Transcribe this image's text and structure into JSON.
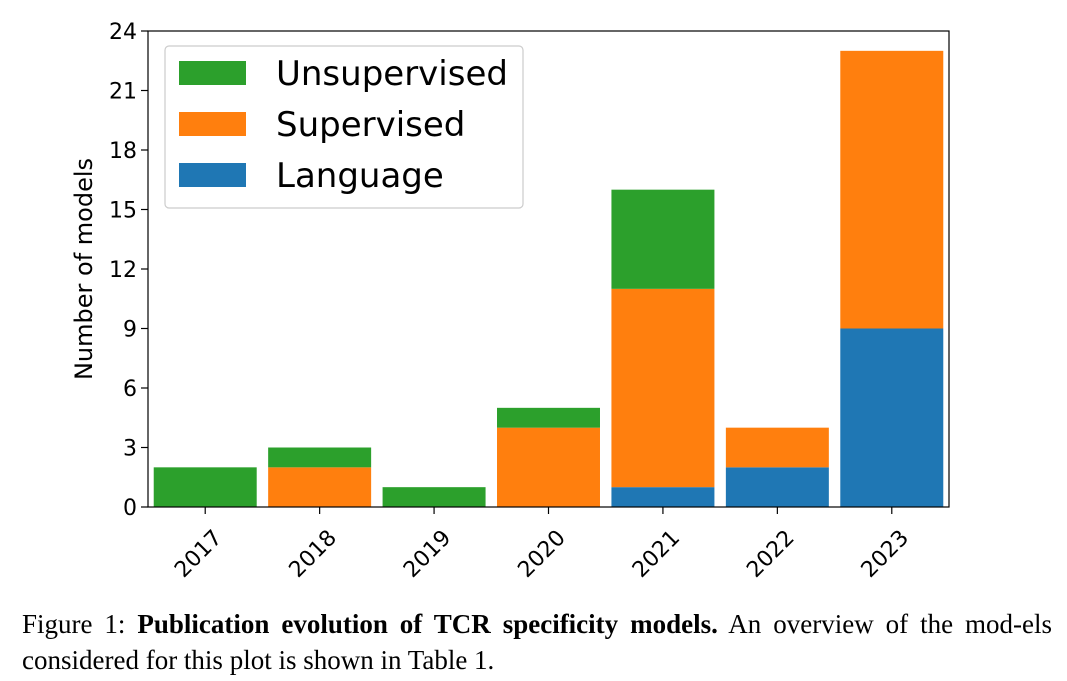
{
  "chart_data": {
    "type": "bar",
    "stacked": true,
    "categories": [
      "2017",
      "2018",
      "2019",
      "2020",
      "2021",
      "2022",
      "2023"
    ],
    "series": [
      {
        "name": "Language",
        "color": "#1f77b4",
        "values": [
          0,
          0,
          0,
          0,
          1,
          2,
          9
        ]
      },
      {
        "name": "Supervised",
        "color": "#ff7f0e",
        "values": [
          0,
          2,
          0,
          4,
          10,
          2,
          14
        ]
      },
      {
        "name": "Unsupervised",
        "color": "#2ca02c",
        "values": [
          2,
          1,
          1,
          1,
          5,
          0,
          0
        ]
      }
    ],
    "legend_order": [
      "Unsupervised",
      "Supervised",
      "Language"
    ],
    "legend_position": "top-left",
    "xlabel": "",
    "ylabel": "Number of models",
    "ylim": [
      0,
      24
    ],
    "yticks": [
      0,
      3,
      6,
      9,
      12,
      15,
      18,
      21,
      24
    ],
    "grid": false
  },
  "caption": {
    "prefix": "Figure 1: ",
    "bold": "Publication evolution of TCR specificity models.",
    "rest": " An overview of the mod-els considered for this plot is shown in Table 1."
  }
}
